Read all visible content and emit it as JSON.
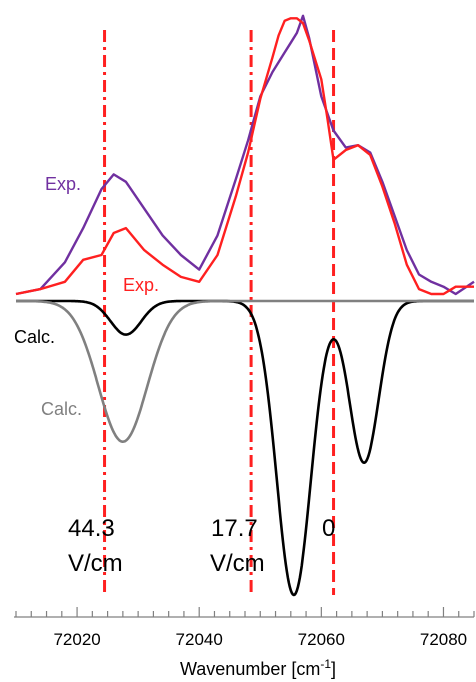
{
  "chart_data": {
    "type": "line",
    "title": "",
    "xlabel": "Wavenumber [cm",
    "xlabel_sup": "-1",
    "xlabel_end": "]",
    "xlim": [
      72010,
      72085
    ],
    "x_ticks": [
      72020,
      72040,
      72060,
      72080
    ],
    "x_tick_labels": [
      "72020",
      "72040",
      "72060",
      "72080"
    ],
    "x_minor_step": 2.5,
    "y_axis": "none",
    "grid": false,
    "legend": "none",
    "series": [
      {
        "name": "Exp.",
        "color": "#7030a0",
        "x": [
          72010,
          72014,
          72018,
          72021,
          72024,
          72026,
          72028,
          72031,
          72034,
          72037,
          72040,
          72043,
          72046,
          72048,
          72050,
          72052,
          72054,
          72055,
          72056,
          72057,
          72058,
          72060,
          72062,
          72064,
          72066,
          72068,
          72070,
          72072,
          72074,
          72076,
          72078,
          72080,
          72082,
          72085
        ],
        "y": [
          0.0,
          0.02,
          0.13,
          0.27,
          0.43,
          0.49,
          0.46,
          0.35,
          0.24,
          0.16,
          0.1,
          0.24,
          0.47,
          0.63,
          0.81,
          0.91,
          0.99,
          1.03,
          1.07,
          1.14,
          1.05,
          0.81,
          0.67,
          0.6,
          0.61,
          0.58,
          0.46,
          0.32,
          0.18,
          0.08,
          0.05,
          0.03,
          0.0,
          0.05
        ]
      },
      {
        "name": "Exp.",
        "color": "#ff2020",
        "x": [
          72010,
          72014,
          72018,
          72021,
          72024,
          72026,
          72028,
          72031,
          72034,
          72037,
          72040,
          72043,
          72046,
          72048,
          72050,
          72052,
          72053,
          72054,
          72055,
          72056,
          72057,
          72058,
          72060,
          72061,
          72062,
          72064,
          72066,
          72068,
          72070,
          72072,
          72074,
          72076,
          72078,
          72080,
          72082,
          72085
        ],
        "y": [
          0.0,
          0.02,
          0.05,
          0.14,
          0.16,
          0.25,
          0.27,
          0.18,
          0.12,
          0.07,
          0.05,
          0.16,
          0.4,
          0.58,
          0.8,
          0.97,
          1.06,
          1.12,
          1.13,
          1.13,
          1.11,
          1.04,
          0.88,
          0.72,
          0.55,
          0.59,
          0.61,
          0.57,
          0.44,
          0.29,
          0.12,
          0.02,
          0.0,
          0.0,
          0.03,
          0.03
        ]
      },
      {
        "name": "Calc.",
        "color": "#000000",
        "peaks": [
          {
            "center": 72028,
            "amp": 0.16,
            "width": 2.5
          },
          {
            "center": 72055.5,
            "amp": 1.4,
            "width": 2.8
          },
          {
            "center": 72067,
            "amp": 0.77,
            "width": 2.4
          }
        ]
      },
      {
        "name": "Calc.",
        "color": "#808080",
        "peaks": [
          {
            "center": 72027.5,
            "amp": 0.67,
            "width": 4.0
          }
        ]
      }
    ],
    "markers": [
      {
        "x": 72024.5,
        "style": "dash-dot",
        "label": [
          "44.3",
          "V/cm"
        ]
      },
      {
        "x": 72048.5,
        "style": "dash-dot",
        "label": [
          "17.7",
          "V/cm"
        ]
      },
      {
        "x": 72062,
        "style": "dashed",
        "label": [
          "0"
        ]
      }
    ],
    "annotations": [
      {
        "text": "Exp.",
        "color": "#7030a0"
      },
      {
        "text": "Exp.",
        "color": "#ff2020"
      },
      {
        "text": "Calc.",
        "color": "#000000"
      },
      {
        "text": "Calc.",
        "color": "#808080"
      }
    ],
    "marker_color": "#ff2020"
  }
}
